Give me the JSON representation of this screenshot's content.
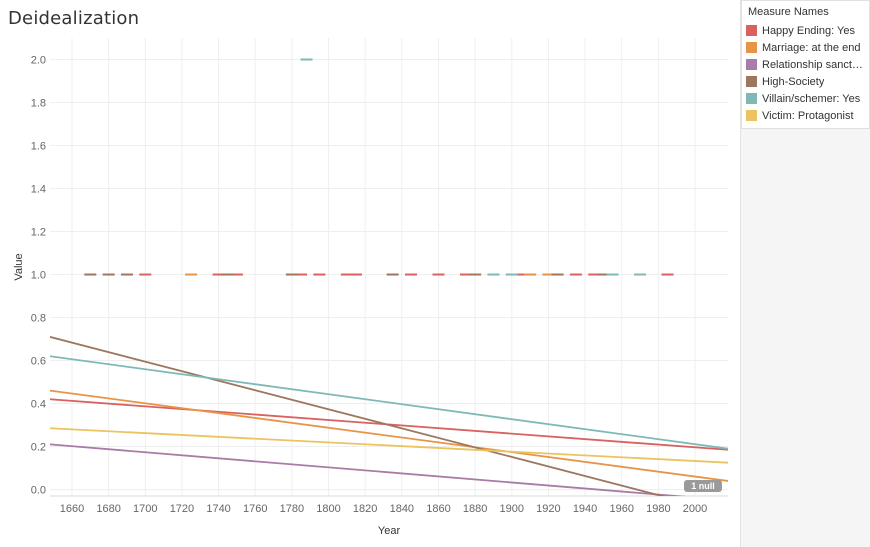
{
  "chart_data": {
    "type": "scatter",
    "title": "Deidealization",
    "xlabel": "Year",
    "ylabel": "Value",
    "xlim": [
      1648,
      2018
    ],
    "ylim": [
      -0.03,
      2.1
    ],
    "x_ticks": [
      "1660",
      "1680",
      "1700",
      "1720",
      "1740",
      "1760",
      "1780",
      "1800",
      "1820",
      "1840",
      "1860",
      "1880",
      "1900",
      "1920",
      "1940",
      "1960",
      "1980",
      "2000"
    ],
    "y_ticks": [
      "0.0",
      "0.2",
      "0.4",
      "0.6",
      "0.8",
      "1.0",
      "1.2",
      "1.4",
      "1.6",
      "1.8",
      "2.0"
    ],
    "grid": true,
    "legend_title": "Measure Names",
    "legend_position": "right",
    "null_indicator": "1 null",
    "series": [
      {
        "name": "Happy Ending: Yes",
        "color": "#d9615f",
        "points": [
          [
            1700,
            1
          ],
          [
            1740,
            1
          ],
          [
            1750,
            1
          ],
          [
            1785,
            1
          ],
          [
            1795,
            1
          ],
          [
            1810,
            1
          ],
          [
            1815,
            1
          ],
          [
            1845,
            1
          ],
          [
            1860,
            1
          ],
          [
            1875,
            1
          ],
          [
            1905,
            1
          ],
          [
            1910,
            1
          ],
          [
            1935,
            1
          ],
          [
            1945,
            1
          ],
          [
            1985,
            1
          ]
        ],
        "trend": [
          [
            1648,
            0.42
          ],
          [
            2018,
            0.185
          ]
        ]
      },
      {
        "name": "Marriage: at the end",
        "color": "#e79447",
        "points": [
          [
            1725,
            1
          ],
          [
            1910,
            1
          ],
          [
            1920,
            1
          ]
        ],
        "trend": [
          [
            1648,
            0.46
          ],
          [
            2018,
            0.04
          ]
        ]
      },
      {
        "name": "Relationship sanctio..",
        "color": "#a87ca7",
        "points": [],
        "trend": [
          [
            1648,
            0.21
          ],
          [
            2018,
            -0.05
          ]
        ]
      },
      {
        "name": "High-Society",
        "color": "#9d7660",
        "points": [
          [
            1670,
            1
          ],
          [
            1680,
            1
          ],
          [
            1690,
            1
          ],
          [
            1745,
            1
          ],
          [
            1780,
            1
          ],
          [
            1835,
            1
          ],
          [
            1880,
            1
          ],
          [
            1925,
            1
          ],
          [
            1950,
            1
          ]
        ],
        "trend": [
          [
            1648,
            0.71
          ],
          [
            2018,
            -0.11
          ]
        ]
      },
      {
        "name": "Villain/schemer: Yes",
        "color": "#7fb9b5",
        "points": [
          [
            1788,
            2
          ],
          [
            1890,
            1
          ],
          [
            1900,
            1
          ],
          [
            1955,
            1
          ],
          [
            1970,
            1
          ]
        ],
        "trend": [
          [
            1648,
            0.62
          ],
          [
            2018,
            0.19
          ]
        ]
      },
      {
        "name": "Victim: Protagonist",
        "color": "#ecc45e",
        "points": [],
        "trend": [
          [
            1648,
            0.285
          ],
          [
            2018,
            0.125
          ]
        ]
      }
    ]
  }
}
